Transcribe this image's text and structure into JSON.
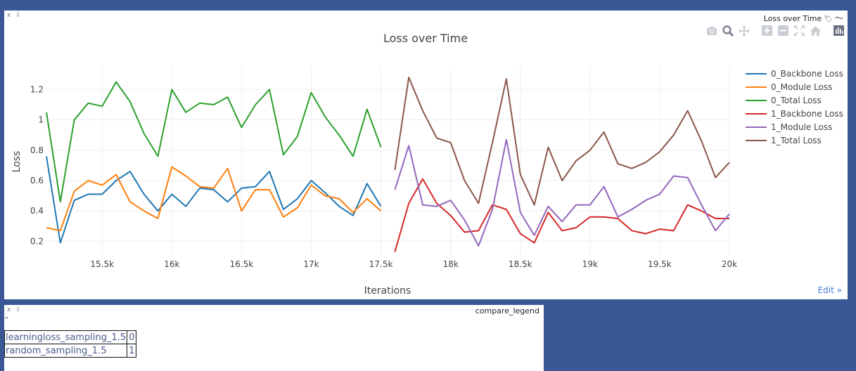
{
  "plot_pane": {
    "close": "x",
    "pin": "⇩",
    "title": "Loss over Time",
    "edit_label": "Edit »"
  },
  "modebar": {
    "icons": [
      "camera-icon",
      "zoom-icon",
      "pan-icon",
      "zoom-in-icon",
      "zoom-out-icon",
      "autoscale-icon",
      "reset-axes-icon",
      "plotly-logo-icon"
    ]
  },
  "legend_pane": {
    "close": "x",
    "pin": "⇩",
    "title": "compare_legend",
    "quote": "\"",
    "rows": [
      {
        "label": "learningloss_sampling_1.5",
        "index": "0"
      },
      {
        "label": "random_sampling_1.5",
        "index": "1"
      }
    ]
  },
  "chart_data": {
    "type": "line",
    "title": "Loss over Time",
    "xlabel": "Iterations",
    "ylabel": "Loss",
    "xlim": [
      15100,
      20000
    ],
    "ylim": [
      0.1,
      1.35
    ],
    "x_ticks": [
      {
        "v": 15500,
        "label": "15.5k"
      },
      {
        "v": 16000,
        "label": "16k"
      },
      {
        "v": 16500,
        "label": "16.5k"
      },
      {
        "v": 17000,
        "label": "17k"
      },
      {
        "v": 17500,
        "label": "17.5k"
      },
      {
        "v": 18000,
        "label": "18k"
      },
      {
        "v": 18500,
        "label": "18.5k"
      },
      {
        "v": 19000,
        "label": "19k"
      },
      {
        "v": 19500,
        "label": "19.5k"
      },
      {
        "v": 20000,
        "label": "20k"
      }
    ],
    "y_ticks": [
      {
        "v": 0.2,
        "label": "0.2"
      },
      {
        "v": 0.4,
        "label": "0.4"
      },
      {
        "v": 0.6,
        "label": "0.6"
      },
      {
        "v": 0.8,
        "label": "0.8"
      },
      {
        "v": 1.0,
        "label": "1"
      },
      {
        "v": 1.2,
        "label": "1.2"
      }
    ],
    "grid": true,
    "legend_position": "right",
    "series": [
      {
        "name": "0_Backbone Loss",
        "color": "#1f77b4",
        "x": [
          15100,
          15200,
          15300,
          15400,
          15500,
          15600,
          15700,
          15800,
          15900,
          16000,
          16100,
          16200,
          16300,
          16400,
          16500,
          16600,
          16700,
          16800,
          16900,
          17000,
          17100,
          17200,
          17300,
          17400,
          17500
        ],
        "y": [
          0.76,
          0.19,
          0.47,
          0.51,
          0.51,
          0.6,
          0.66,
          0.51,
          0.4,
          0.51,
          0.43,
          0.55,
          0.54,
          0.46,
          0.55,
          0.56,
          0.66,
          0.41,
          0.48,
          0.6,
          0.52,
          0.43,
          0.37,
          0.58,
          0.43
        ]
      },
      {
        "name": "0_Module Loss",
        "color": "#ff7f0e",
        "x": [
          15100,
          15200,
          15300,
          15400,
          15500,
          15600,
          15700,
          15800,
          15900,
          16000,
          16100,
          16200,
          16300,
          16400,
          16500,
          16600,
          16700,
          16800,
          16900,
          17000,
          17100,
          17200,
          17300,
          17400,
          17500
        ],
        "y": [
          0.29,
          0.27,
          0.53,
          0.6,
          0.57,
          0.64,
          0.46,
          0.4,
          0.35,
          0.69,
          0.63,
          0.56,
          0.55,
          0.68,
          0.4,
          0.54,
          0.54,
          0.36,
          0.42,
          0.57,
          0.5,
          0.48,
          0.39,
          0.48,
          0.4
        ]
      },
      {
        "name": "0_Total Loss",
        "color": "#2ca02c",
        "x": [
          15100,
          15200,
          15300,
          15400,
          15500,
          15600,
          15700,
          15800,
          15900,
          16000,
          16100,
          16200,
          16300,
          16400,
          16500,
          16600,
          16700,
          16800,
          16900,
          17000,
          17100,
          17200,
          17300,
          17400,
          17500
        ],
        "y": [
          1.05,
          0.46,
          1.0,
          1.11,
          1.09,
          1.25,
          1.12,
          0.91,
          0.76,
          1.2,
          1.05,
          1.11,
          1.1,
          1.15,
          0.95,
          1.1,
          1.2,
          0.77,
          0.89,
          1.18,
          1.02,
          0.9,
          0.76,
          1.07,
          0.82
        ]
      },
      {
        "name": "1_Backbone Loss",
        "color": "#d62728",
        "x": [
          17600,
          17700,
          17800,
          17900,
          18000,
          18100,
          18200,
          18300,
          18400,
          18500,
          18600,
          18700,
          18800,
          18900,
          19000,
          19100,
          19200,
          19300,
          19400,
          19500,
          19600,
          19700,
          19800,
          19900,
          20000
        ],
        "y": [
          0.13,
          0.45,
          0.61,
          0.45,
          0.37,
          0.26,
          0.27,
          0.44,
          0.41,
          0.25,
          0.19,
          0.39,
          0.27,
          0.29,
          0.36,
          0.36,
          0.35,
          0.27,
          0.25,
          0.28,
          0.27,
          0.44,
          0.4,
          0.35,
          0.35
        ]
      },
      {
        "name": "1_Module Loss",
        "color": "#9467bd",
        "x": [
          17600,
          17700,
          17800,
          17900,
          18000,
          18100,
          18200,
          18300,
          18400,
          18500,
          18600,
          18700,
          18800,
          18900,
          19000,
          19100,
          19200,
          19300,
          19400,
          19500,
          19600,
          19700,
          19800,
          19900,
          20000
        ],
        "y": [
          0.54,
          0.83,
          0.44,
          0.43,
          0.47,
          0.34,
          0.17,
          0.41,
          0.87,
          0.39,
          0.24,
          0.43,
          0.33,
          0.44,
          0.44,
          0.56,
          0.36,
          0.41,
          0.47,
          0.51,
          0.63,
          0.62,
          0.44,
          0.27,
          0.38
        ]
      },
      {
        "name": "1_Total Loss",
        "color": "#8c564b",
        "x": [
          17600,
          17700,
          17800,
          17900,
          18000,
          18100,
          18200,
          18300,
          18400,
          18500,
          18600,
          18700,
          18800,
          18900,
          19000,
          19100,
          19200,
          19300,
          19400,
          19500,
          19600,
          19700,
          19800,
          19900,
          20000
        ],
        "y": [
          0.67,
          1.28,
          1.06,
          0.88,
          0.85,
          0.6,
          0.45,
          0.85,
          1.27,
          0.64,
          0.44,
          0.82,
          0.6,
          0.73,
          0.8,
          0.92,
          0.71,
          0.68,
          0.72,
          0.79,
          0.9,
          1.06,
          0.86,
          0.62,
          0.72
        ]
      }
    ]
  }
}
